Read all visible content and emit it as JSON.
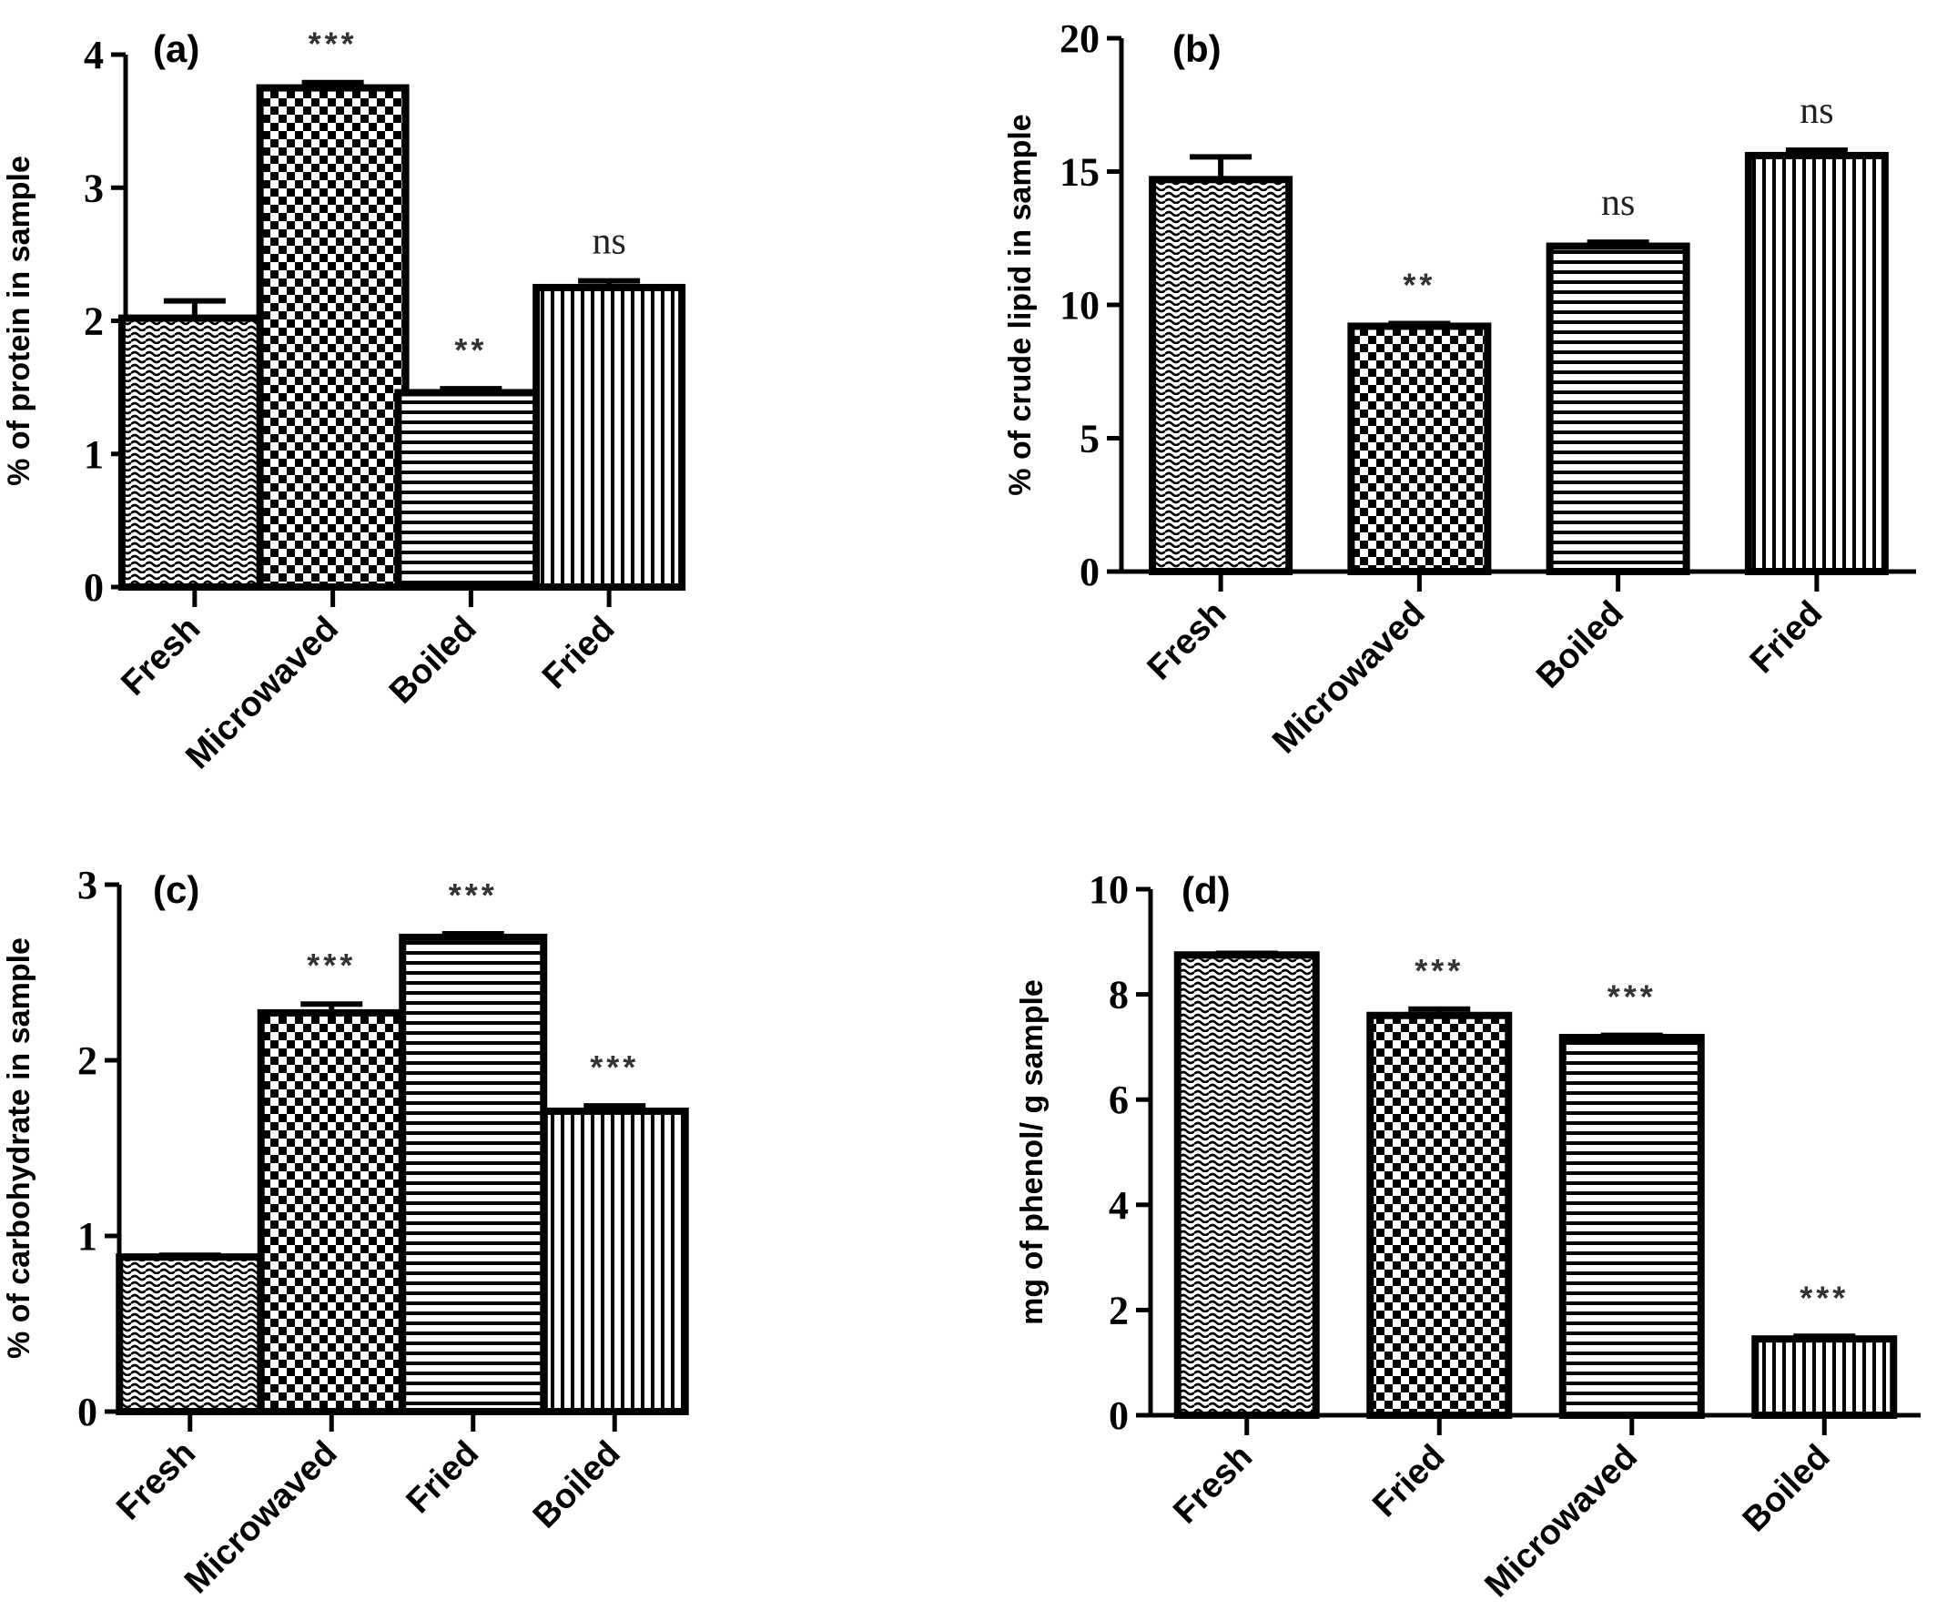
{
  "chart_data": [
    {
      "panel": "(a)",
      "type": "bar",
      "categories": [
        "Fresh",
        "Microwaved",
        "Boiled",
        "Fried"
      ],
      "values": [
        2.02,
        3.75,
        1.46,
        2.25
      ],
      "errors": [
        0.13,
        0.04,
        0.03,
        0.05
      ],
      "annotations": [
        "",
        "***",
        "**",
        "ns"
      ],
      "patterns": [
        "wave",
        "check",
        "hline",
        "vline"
      ],
      "ylabel": "% of protein in sample",
      "xlabel": "",
      "ylim": [
        0,
        4
      ],
      "yticks": [
        0,
        1,
        2,
        3,
        4
      ]
    },
    {
      "panel": "(b)",
      "type": "bar",
      "categories": [
        "Fresh",
        "Microwaved",
        "Boiled",
        "Fried"
      ],
      "values": [
        14.7,
        9.2,
        12.2,
        15.6
      ],
      "errors": [
        0.85,
        0.1,
        0.15,
        0.2
      ],
      "annotations": [
        "",
        "**",
        "ns",
        "ns"
      ],
      "patterns": [
        "wave",
        "check",
        "hline",
        "vline"
      ],
      "ylabel": "% of crude lipid in sample",
      "xlabel": "",
      "ylim": [
        0,
        20
      ],
      "yticks": [
        0,
        5,
        10,
        15,
        20
      ]
    },
    {
      "panel": "(c)",
      "type": "bar",
      "categories": [
        "Fresh",
        "Microwaved",
        "Fried",
        "Boiled"
      ],
      "values": [
        0.88,
        2.27,
        2.7,
        1.71
      ],
      "errors": [
        0.01,
        0.05,
        0.02,
        0.03
      ],
      "annotations": [
        "",
        "***",
        "***",
        "***"
      ],
      "patterns": [
        "wave",
        "check",
        "hline",
        "vline"
      ],
      "ylabel": "% of carbohydrate in sample",
      "xlabel": "",
      "ylim": [
        0,
        3
      ],
      "yticks": [
        0,
        1,
        2,
        3
      ]
    },
    {
      "panel": "(d)",
      "type": "bar",
      "categories": [
        "Fresh",
        "Fried",
        "Microwaved",
        "Boiled"
      ],
      "values": [
        8.75,
        7.6,
        7.18,
        1.45
      ],
      "errors": [
        0.03,
        0.12,
        0.04,
        0.05
      ],
      "annotations": [
        "",
        "***",
        "***",
        "***"
      ],
      "patterns": [
        "wave",
        "check",
        "hline",
        "vline"
      ],
      "ylabel": "mg of phenol/ g sample",
      "xlabel": "",
      "ylim": [
        0,
        10
      ],
      "yticks": [
        0,
        2,
        4,
        6,
        8,
        10
      ]
    }
  ]
}
